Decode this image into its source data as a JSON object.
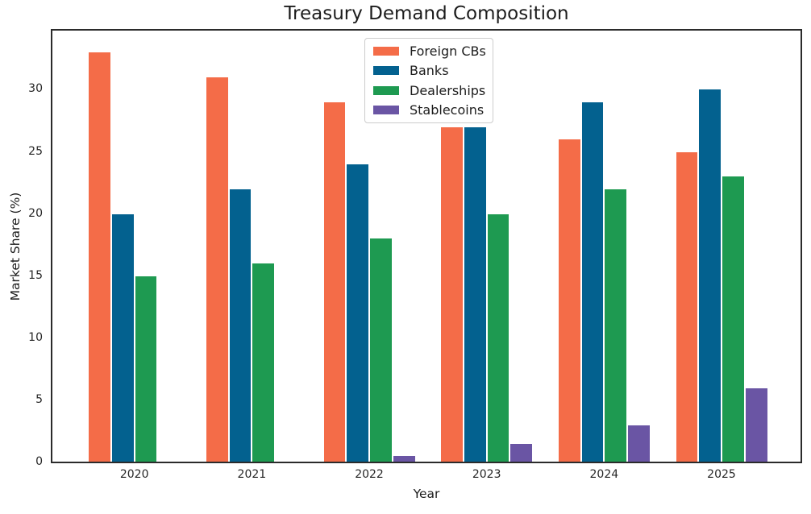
{
  "title": "Treasury Demand Composition",
  "axes": {
    "x_label": "Year",
    "y_label": "Market Share (%)"
  },
  "chart_data": {
    "type": "bar",
    "title": "Treasury Demand Composition",
    "xlabel": "Year",
    "ylabel": "Market Share (%)",
    "categories": [
      "2020",
      "2021",
      "2022",
      "2023",
      "2024",
      "2025"
    ],
    "series": [
      {
        "name": "Foreign CBs",
        "color": "#F46C48",
        "values": [
          33,
          31,
          29,
          27,
          26,
          25
        ]
      },
      {
        "name": "Banks",
        "color": "#03618F",
        "values": [
          20,
          22,
          24,
          27,
          29,
          30
        ]
      },
      {
        "name": "Dealerships",
        "color": "#1E9A51",
        "values": [
          15,
          16,
          18,
          20,
          22,
          23
        ]
      },
      {
        "name": "Stablecoins",
        "color": "#6A55A4",
        "values": [
          0,
          0,
          0.5,
          1.5,
          3,
          6
        ]
      }
    ],
    "yticks": [
      0,
      5,
      10,
      15,
      20,
      25,
      30
    ],
    "ylim": [
      0,
      34.7
    ],
    "grid": false,
    "legend_position": "upper center",
    "spine_color": "#2b2b2b",
    "bar_edge_color": "#ffffff"
  }
}
